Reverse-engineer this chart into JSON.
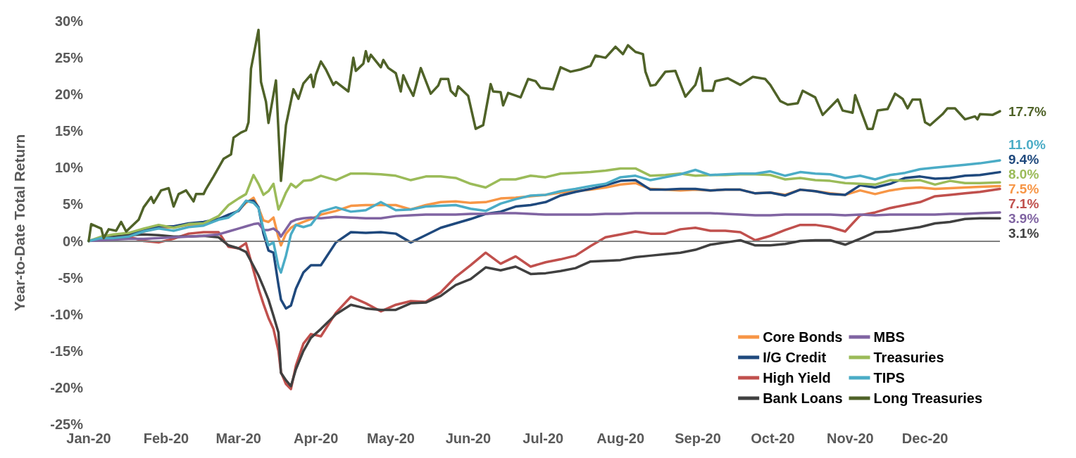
{
  "chart_data": {
    "type": "line",
    "ylabel": "Year-to-Date Total Return",
    "x": [
      "2020-01-01",
      "2020-01-06",
      "2020-01-11",
      "2020-01-17",
      "2020-01-23",
      "2020-01-29",
      "2020-02-04",
      "2020-02-10",
      "2020-02-16",
      "2020-02-22",
      "2020-02-26",
      "2020-03-01",
      "2020-03-04",
      "2020-03-07",
      "2020-03-09",
      "2020-03-11",
      "2020-03-13",
      "2020-03-15",
      "2020-03-17",
      "2020-03-18",
      "2020-03-20",
      "2020-03-22",
      "2020-03-24",
      "2020-03-27",
      "2020-03-30",
      "2020-04-03",
      "2020-04-09",
      "2020-04-15",
      "2020-04-21",
      "2020-04-27",
      "2020-05-03",
      "2020-05-09",
      "2020-05-15",
      "2020-05-21",
      "2020-05-27",
      "2020-06-02",
      "2020-06-08",
      "2020-06-14",
      "2020-06-20",
      "2020-06-26",
      "2020-07-02",
      "2020-07-08",
      "2020-07-14",
      "2020-07-20",
      "2020-07-26",
      "2020-08-01",
      "2020-08-07",
      "2020-08-13",
      "2020-08-19",
      "2020-08-25",
      "2020-08-31",
      "2020-09-06",
      "2020-09-12",
      "2020-09-18",
      "2020-09-24",
      "2020-09-30",
      "2020-10-06",
      "2020-10-12",
      "2020-10-18",
      "2020-10-24",
      "2020-10-30",
      "2020-11-05",
      "2020-11-11",
      "2020-11-17",
      "2020-11-23",
      "2020-11-29",
      "2020-12-05",
      "2020-12-11",
      "2020-12-17",
      "2020-12-23",
      "2020-12-31"
    ],
    "series": [
      {
        "name": "Core Bonds",
        "color": "#f79646",
        "values": [
          null,
          null,
          null,
          null,
          1.3,
          1.8,
          1.9,
          2.2,
          2.3,
          3.0,
          3.4,
          4.2,
          5.2,
          5.9,
          4.5,
          2.8,
          2.6,
          3.2,
          0.5,
          -0.6,
          1.0,
          1.8,
          2.2,
          2.6,
          3.0,
          3.6,
          4.1,
          4.8,
          4.9,
          4.9,
          4.9,
          4.3,
          4.9,
          5.3,
          5.4,
          5.2,
          5.3,
          5.8,
          5.9,
          6.1,
          6.3,
          6.6,
          6.8,
          7.0,
          7.3,
          7.7,
          7.9,
          7.1,
          7.0,
          6.9,
          7.0,
          6.9,
          7.0,
          7.0,
          6.5,
          6.6,
          6.3,
          7.0,
          6.8,
          6.5,
          6.3,
          6.9,
          6.4,
          6.9,
          7.2,
          7.3,
          7.1,
          7.2,
          7.3,
          7.4,
          7.5
        ],
        "value_labels": [
          null,
          null,
          null,
          null,
          null,
          null,
          null,
          null,
          null,
          null,
          null,
          null,
          null,
          null,
          null,
          null,
          null,
          null,
          null,
          null,
          null,
          null,
          null,
          null,
          null,
          null,
          null,
          null,
          null,
          null,
          null,
          null,
          null,
          null,
          null,
          null,
          null,
          null,
          null,
          null,
          null,
          null,
          null,
          null,
          null,
          null,
          null,
          null,
          null,
          null,
          null,
          null,
          null,
          null,
          null,
          null,
          null,
          null,
          null,
          null,
          null,
          null,
          null,
          null,
          null,
          null,
          null,
          null,
          null,
          null,
          "7.5%"
        ]
      },
      {
        "name": "I/G Credit",
        "color": "#1f497d",
        "values": [
          0,
          0.2,
          0.4,
          0.9,
          1.5,
          2.0,
          2.0,
          2.4,
          2.6,
          3.0,
          3.6,
          4.1,
          5.4,
          5.5,
          4.6,
          1.0,
          -1.3,
          -1.6,
          -6.0,
          -8.0,
          -9.2,
          -8.8,
          -6.5,
          -4.3,
          -3.3,
          -3.3,
          -0.2,
          1.2,
          1.1,
          1.2,
          1.0,
          -0.2,
          0.8,
          1.8,
          2.4,
          3.0,
          3.7,
          4.0,
          4.7,
          4.9,
          5.3,
          6.2,
          6.7,
          7.1,
          7.6,
          8.2,
          8.3,
          7.0,
          7.0,
          7.1,
          7.1,
          6.9,
          7.0,
          7.0,
          6.5,
          6.6,
          6.2,
          7.0,
          6.8,
          6.4,
          6.3,
          7.6,
          7.3,
          7.8,
          8.6,
          8.8,
          8.5,
          8.6,
          8.9,
          9.0,
          9.4
        ],
        "value_labels": [
          null,
          null,
          null,
          null,
          null,
          null,
          null,
          null,
          null,
          null,
          null,
          null,
          null,
          null,
          null,
          null,
          null,
          null,
          null,
          null,
          null,
          null,
          null,
          null,
          null,
          null,
          null,
          null,
          null,
          null,
          null,
          null,
          null,
          null,
          null,
          null,
          null,
          null,
          null,
          null,
          null,
          null,
          null,
          null,
          null,
          null,
          null,
          null,
          null,
          null,
          null,
          null,
          null,
          null,
          null,
          null,
          null,
          null,
          null,
          null,
          null,
          null,
          null,
          null,
          null,
          null,
          null,
          null,
          null,
          null,
          "9.4%"
        ]
      },
      {
        "name": "High Yield",
        "color": "#c0504d",
        "values": [
          null,
          null,
          0.4,
          0.6,
          0.0,
          -0.2,
          0.3,
          1.0,
          1.2,
          1.2,
          -0.8,
          -1.0,
          -0.3,
          -4.0,
          -6.5,
          -8.6,
          -10.5,
          -12.0,
          -15.0,
          -17.9,
          -19.5,
          -20.2,
          -17.0,
          -14.0,
          -12.7,
          -13.0,
          -9.8,
          -7.6,
          -8.5,
          -9.6,
          -8.7,
          -8.2,
          -8.3,
          -7.0,
          -4.9,
          -3.3,
          -1.6,
          -3.1,
          -2.1,
          -3.5,
          -2.9,
          -2.5,
          -2.0,
          -0.7,
          0.5,
          0.9,
          1.3,
          1.0,
          1.0,
          1.6,
          1.8,
          1.4,
          1.4,
          1.2,
          0.1,
          0.7,
          1.5,
          2.2,
          2.2,
          1.9,
          1.3,
          3.5,
          3.9,
          4.5,
          4.9,
          5.3,
          6.1,
          6.3,
          6.5,
          6.7,
          7.1
        ],
        "value_labels": [
          null,
          null,
          null,
          null,
          null,
          null,
          null,
          null,
          null,
          null,
          null,
          null,
          null,
          null,
          null,
          null,
          null,
          null,
          null,
          null,
          null,
          null,
          null,
          null,
          null,
          null,
          null,
          null,
          null,
          null,
          null,
          null,
          null,
          null,
          null,
          null,
          null,
          null,
          null,
          null,
          null,
          null,
          null,
          null,
          null,
          null,
          null,
          null,
          null,
          null,
          null,
          null,
          null,
          null,
          null,
          null,
          null,
          null,
          null,
          null,
          null,
          null,
          null,
          null,
          null,
          null,
          null,
          null,
          null,
          null,
          "7.1%"
        ]
      },
      {
        "name": "Bank Loans",
        "color": "#404040",
        "values": [
          0,
          0.4,
          0.6,
          0.8,
          0.9,
          0.8,
          0.6,
          0.6,
          0.7,
          0.5,
          -0.6,
          -1.0,
          -1.5,
          -3.4,
          -4.7,
          -6.3,
          -8.0,
          -10.2,
          -12.5,
          -18.0,
          -19.0,
          -19.8,
          -17.5,
          -15.0,
          -13.2,
          -12.0,
          -10.0,
          -8.7,
          -9.2,
          -9.4,
          -9.4,
          -8.5,
          -8.4,
          -7.5,
          -6.0,
          -5.2,
          -3.6,
          -4.0,
          -3.5,
          -4.5,
          -4.4,
          -4.1,
          -3.7,
          -2.8,
          -2.7,
          -2.6,
          -2.2,
          -2.0,
          -1.8,
          -1.6,
          -1.2,
          -0.5,
          -0.2,
          0.1,
          -0.6,
          -0.6,
          -0.4,
          0.0,
          0.1,
          0.1,
          -0.5,
          0.3,
          1.2,
          1.3,
          1.6,
          1.9,
          2.4,
          2.6,
          3.0,
          3.1,
          3.1
        ],
        "value_labels": [
          null,
          null,
          null,
          null,
          null,
          null,
          null,
          null,
          null,
          null,
          null,
          null,
          null,
          null,
          null,
          null,
          null,
          null,
          null,
          null,
          null,
          null,
          null,
          null,
          null,
          null,
          null,
          null,
          null,
          null,
          null,
          null,
          null,
          null,
          null,
          null,
          null,
          null,
          null,
          null,
          null,
          null,
          null,
          null,
          null,
          null,
          null,
          null,
          null,
          null,
          null,
          null,
          null,
          null,
          null,
          null,
          null,
          null,
          null,
          null,
          null,
          null,
          null,
          null,
          null,
          null,
          null,
          null,
          null,
          null,
          "3.1%"
        ]
      },
      {
        "name": "MBS",
        "color": "#8064a2",
        "values": [
          0,
          0.1,
          0.2,
          0.3,
          0.3,
          0.4,
          0.5,
          0.6,
          0.7,
          0.9,
          1.3,
          1.7,
          2.0,
          2.3,
          2.4,
          1.5,
          1.5,
          1.7,
          1.2,
          0.6,
          1.6,
          2.6,
          2.9,
          3.1,
          3.2,
          3.1,
          3.3,
          3.2,
          3.1,
          3.1,
          3.4,
          3.5,
          3.6,
          3.6,
          3.6,
          3.7,
          3.7,
          3.8,
          3.8,
          3.7,
          3.6,
          3.6,
          3.6,
          3.6,
          3.7,
          3.7,
          3.8,
          3.8,
          3.8,
          3.8,
          3.8,
          3.8,
          3.7,
          3.6,
          3.5,
          3.5,
          3.6,
          3.6,
          3.6,
          3.6,
          3.5,
          3.6,
          3.5,
          3.6,
          3.6,
          3.6,
          3.6,
          3.7,
          3.7,
          3.8,
          3.9
        ],
        "value_labels": [
          null,
          null,
          null,
          null,
          null,
          null,
          null,
          null,
          null,
          null,
          null,
          null,
          null,
          null,
          null,
          null,
          null,
          null,
          null,
          null,
          null,
          null,
          null,
          null,
          null,
          null,
          null,
          null,
          null,
          null,
          null,
          null,
          null,
          null,
          null,
          null,
          null,
          null,
          null,
          null,
          null,
          null,
          null,
          null,
          null,
          null,
          null,
          null,
          null,
          null,
          null,
          null,
          null,
          null,
          null,
          null,
          null,
          null,
          null,
          null,
          null,
          null,
          null,
          null,
          null,
          null,
          null,
          null,
          null,
          null,
          "3.9%"
        ]
      },
      {
        "name": "Treasuries",
        "color": "#9bbb59",
        "values": [
          0,
          0.6,
          0.9,
          1.1,
          1.7,
          2.2,
          1.8,
          2.3,
          2.4,
          3.4,
          4.9,
          5.8,
          6.4,
          9.0,
          7.8,
          6.3,
          6.8,
          7.8,
          4.3,
          5.0,
          6.6,
          7.8,
          7.3,
          8.2,
          8.3,
          8.9,
          8.3,
          9.2,
          9.2,
          9.1,
          8.9,
          8.3,
          8.8,
          8.8,
          8.6,
          7.8,
          7.3,
          8.4,
          8.4,
          8.9,
          8.7,
          9.2,
          9.3,
          9.4,
          9.6,
          9.9,
          9.9,
          8.9,
          9.0,
          9.2,
          8.9,
          9.0,
          9.0,
          9.1,
          9.1,
          9.0,
          8.4,
          8.6,
          8.3,
          8.2,
          7.9,
          7.8,
          7.7,
          8.3,
          8.2,
          8.3,
          7.7,
          8.2,
          7.9,
          7.9,
          8.0
        ],
        "value_labels": [
          null,
          null,
          null,
          null,
          null,
          null,
          null,
          null,
          null,
          null,
          null,
          null,
          null,
          null,
          null,
          null,
          null,
          null,
          null,
          null,
          null,
          null,
          null,
          null,
          null,
          null,
          null,
          null,
          null,
          null,
          null,
          null,
          null,
          null,
          null,
          null,
          null,
          null,
          null,
          null,
          null,
          null,
          null,
          null,
          null,
          null,
          null,
          null,
          null,
          null,
          null,
          null,
          null,
          null,
          null,
          null,
          null,
          null,
          null,
          null,
          null,
          null,
          null,
          null,
          null,
          null,
          null,
          null,
          null,
          null,
          "8.0%"
        ]
      },
      {
        "name": "TIPS",
        "color": "#4bacc6",
        "values": [
          0,
          0.4,
          0.4,
          0.6,
          1.3,
          1.7,
          1.4,
          1.9,
          2.1,
          2.9,
          3.2,
          4.2,
          5.5,
          5.2,
          4.5,
          1.6,
          -0.6,
          -0.2,
          -3.5,
          -4.3,
          -2.0,
          0.9,
          2.2,
          1.9,
          2.2,
          4.0,
          4.6,
          4.0,
          4.2,
          5.3,
          4.2,
          4.3,
          4.7,
          4.8,
          4.9,
          4.4,
          4.1,
          5.1,
          5.7,
          6.2,
          6.3,
          6.8,
          7.1,
          7.5,
          7.8,
          8.7,
          8.9,
          8.3,
          8.7,
          9.1,
          9.7,
          9.0,
          9.1,
          9.2,
          9.2,
          9.5,
          8.9,
          9.4,
          9.2,
          9.1,
          8.6,
          8.9,
          8.4,
          9.0,
          9.3,
          9.8,
          10.0,
          10.2,
          10.4,
          10.6,
          11.0
        ],
        "value_labels": [
          null,
          null,
          null,
          null,
          null,
          null,
          null,
          null,
          null,
          null,
          null,
          null,
          null,
          null,
          null,
          null,
          null,
          null,
          null,
          null,
          null,
          null,
          null,
          null,
          null,
          null,
          null,
          null,
          null,
          null,
          null,
          null,
          null,
          null,
          null,
          null,
          null,
          null,
          null,
          null,
          null,
          null,
          null,
          null,
          null,
          null,
          null,
          null,
          null,
          null,
          null,
          null,
          null,
          null,
          null,
          null,
          null,
          null,
          null,
          null,
          null,
          null,
          null,
          null,
          null,
          null,
          null,
          null,
          null,
          null,
          "11.0%"
        ]
      },
      {
        "name": "Long Treasuries",
        "color": "#4f6228",
        "x": [
          "2020-01-01",
          "2020-01-02",
          "2020-01-06",
          "2020-01-07",
          "2020-01-09",
          "2020-01-12",
          "2020-01-14",
          "2020-01-16",
          "2020-01-21",
          "2020-01-23",
          "2020-01-26",
          "2020-01-27",
          "2020-01-30",
          "2020-02-02",
          "2020-02-04",
          "2020-02-06",
          "2020-02-09",
          "2020-02-12",
          "2020-02-13",
          "2020-02-16",
          "2020-02-17",
          "2020-02-20",
          "2020-02-24",
          "2020-02-27",
          "2020-02-28",
          "2020-03-02",
          "2020-03-04",
          "2020-03-05",
          "2020-03-06",
          "2020-03-09",
          "2020-03-10",
          "2020-03-12",
          "2020-03-13",
          "2020-03-16",
          "2020-03-18",
          "2020-03-20",
          "2020-03-23",
          "2020-03-25",
          "2020-03-27",
          "2020-03-30",
          "2020-03-31",
          "2020-04-01",
          "2020-04-03",
          "2020-04-05",
          "2020-04-08",
          "2020-04-09",
          "2020-04-14",
          "2020-04-16",
          "2020-04-17",
          "2020-04-20",
          "2020-04-21",
          "2020-04-22",
          "2020-04-23",
          "2020-04-27",
          "2020-04-28",
          "2020-04-30",
          "2020-05-03",
          "2020-05-05",
          "2020-05-06",
          "2020-05-08",
          "2020-05-10",
          "2020-05-13",
          "2020-05-17",
          "2020-05-20",
          "2020-05-21",
          "2020-05-24",
          "2020-05-25",
          "2020-05-27",
          "2020-05-28",
          "2020-06-01",
          "2020-06-04",
          "2020-06-07",
          "2020-06-10",
          "2020-06-11",
          "2020-06-14",
          "2020-06-15",
          "2020-06-17",
          "2020-06-22",
          "2020-06-25",
          "2020-06-28",
          "2020-06-30",
          "2020-07-05",
          "2020-07-08",
          "2020-07-12",
          "2020-07-16",
          "2020-07-20",
          "2020-07-22",
          "2020-07-26",
          "2020-07-30",
          "2020-08-02",
          "2020-08-04",
          "2020-08-07",
          "2020-08-10",
          "2020-08-11",
          "2020-08-13",
          "2020-08-15",
          "2020-08-19",
          "2020-08-23",
          "2020-08-27",
          "2020-08-31",
          "2020-09-02",
          "2020-09-03",
          "2020-09-07",
          "2020-09-08",
          "2020-09-13",
          "2020-09-18",
          "2020-09-23",
          "2020-09-28",
          "2020-09-30",
          "2020-10-04",
          "2020-10-07",
          "2020-10-11",
          "2020-10-13",
          "2020-10-18",
          "2020-10-21",
          "2020-10-27",
          "2020-10-29",
          "2020-11-02",
          "2020-11-03",
          "2020-11-08",
          "2020-11-10",
          "2020-11-12",
          "2020-11-16",
          "2020-11-19",
          "2020-11-22",
          "2020-11-24",
          "2020-11-26",
          "2020-11-29",
          "2020-12-01",
          "2020-12-03",
          "2020-12-08",
          "2020-12-10",
          "2020-12-13",
          "2020-12-17",
          "2020-12-21",
          "2020-12-22",
          "2020-12-23",
          "2020-12-28",
          "2020-12-31"
        ],
        "values": [
          0,
          2.3,
          1.7,
          0.4,
          1.6,
          1.4,
          2.6,
          1.3,
          2.9,
          4.6,
          6.0,
          5.2,
          6.9,
          7.2,
          4.7,
          6.4,
          6.9,
          5.4,
          6.4,
          6.4,
          7.1,
          8.8,
          11.2,
          11.8,
          14.1,
          14.8,
          15.1,
          16.2,
          23.5,
          28.8,
          21.7,
          19.0,
          16.1,
          21.9,
          8.2,
          15.8,
          20.7,
          19.4,
          21.5,
          22.7,
          21.0,
          22.7,
          24.5,
          23.4,
          21.3,
          21.7,
          20.4,
          25.0,
          23.2,
          24.2,
          25.9,
          24.5,
          25.4,
          23.7,
          24.7,
          23.6,
          22.9,
          20.4,
          22.6,
          21.1,
          19.8,
          23.6,
          20.1,
          21.2,
          22.1,
          22.1,
          20.5,
          19.8,
          21.1,
          19.8,
          15.3,
          15.8,
          21.4,
          20.4,
          20.3,
          18.5,
          20.2,
          19.6,
          22.1,
          21.8,
          20.9,
          20.7,
          23.7,
          23.1,
          23.4,
          23.9,
          25.3,
          25.0,
          26.5,
          25.5,
          26.7,
          25.8,
          25.5,
          23.1,
          21.2,
          21.3,
          23.1,
          23.2,
          19.7,
          21.3,
          23.6,
          20.5,
          20.5,
          21.8,
          22.2,
          21.3,
          22.4,
          22.1,
          21.3,
          19.1,
          18.6,
          18.8,
          20.5,
          19.6,
          17.2,
          19.3,
          17.8,
          17.5,
          19.9,
          15.3,
          15.3,
          17.8,
          18.0,
          20.1,
          19.4,
          18.1,
          19.3,
          19.3,
          16.2,
          15.8,
          17.3,
          18.1,
          18.1,
          16.6,
          17.0,
          16.6,
          17.3,
          17.2,
          17.7
        ],
        "value_labels": [
          null,
          null,
          null,
          null,
          null,
          null,
          null,
          null,
          null,
          null,
          null,
          null,
          null,
          null,
          null,
          null,
          null,
          null,
          null,
          null,
          null,
          null,
          null,
          null,
          null,
          null,
          null,
          null,
          null,
          null,
          null,
          null,
          null,
          null,
          null,
          null,
          null,
          null,
          null,
          null,
          null,
          null,
          null,
          null,
          null,
          null,
          null,
          null,
          null,
          null,
          null,
          null,
          null,
          null,
          null,
          null,
          null,
          null,
          null,
          null,
          null,
          null,
          null,
          null,
          null,
          null,
          null,
          null,
          null,
          null,
          null,
          null,
          null,
          null,
          null,
          null,
          null,
          null,
          null,
          null,
          null,
          null,
          null,
          null,
          null,
          null,
          null,
          null,
          null,
          null,
          null,
          null,
          null,
          null,
          null,
          null,
          null,
          null,
          null,
          null,
          null,
          null,
          null,
          null,
          null,
          null,
          null,
          null,
          null,
          null,
          null,
          null,
          null,
          null,
          null,
          null,
          null,
          null,
          null,
          null,
          null,
          null,
          null,
          null,
          null,
          null,
          null,
          null,
          null,
          null,
          null,
          null,
          null,
          null,
          null,
          null,
          null,
          null,
          "17.7%"
        ]
      }
    ],
    "xlim": [
      "2020-01-01",
      "2020-12-31"
    ],
    "xticks": [
      {
        "value": "2020-01-01",
        "label": "Jan-20"
      },
      {
        "value": "2020-02-01",
        "label": "Feb-20"
      },
      {
        "value": "2020-03-01",
        "label": "Mar-20"
      },
      {
        "value": "2020-04-01",
        "label": "Apr-20"
      },
      {
        "value": "2020-05-01",
        "label": "May-20"
      },
      {
        "value": "2020-06-01",
        "label": "Jun-20"
      },
      {
        "value": "2020-07-01",
        "label": "Jul-20"
      },
      {
        "value": "2020-08-01",
        "label": "Aug-20"
      },
      {
        "value": "2020-09-01",
        "label": "Sep-20"
      },
      {
        "value": "2020-10-01",
        "label": "Oct-20"
      },
      {
        "value": "2020-11-01",
        "label": "Nov-20"
      },
      {
        "value": "2020-12-01",
        "label": "Dec-20"
      }
    ],
    "ylim": [
      -25,
      30
    ],
    "yticks": [
      {
        "value": -25,
        "label": "-25%"
      },
      {
        "value": -20,
        "label": "-20%"
      },
      {
        "value": -15,
        "label": "-15%"
      },
      {
        "value": -10,
        "label": "-10%"
      },
      {
        "value": -5,
        "label": "-5%"
      },
      {
        "value": 0,
        "label": "0%"
      },
      {
        "value": 5,
        "label": "5%"
      },
      {
        "value": 10,
        "label": "10%"
      },
      {
        "value": 15,
        "label": "15%"
      },
      {
        "value": 20,
        "label": "20%"
      },
      {
        "value": 25,
        "label": "25%"
      },
      {
        "value": 30,
        "label": "30%"
      }
    ],
    "ref_lines": [
      {
        "axis": "y",
        "value": 0,
        "color": "#808080"
      }
    ],
    "grid": false,
    "legend": "bottom right"
  }
}
